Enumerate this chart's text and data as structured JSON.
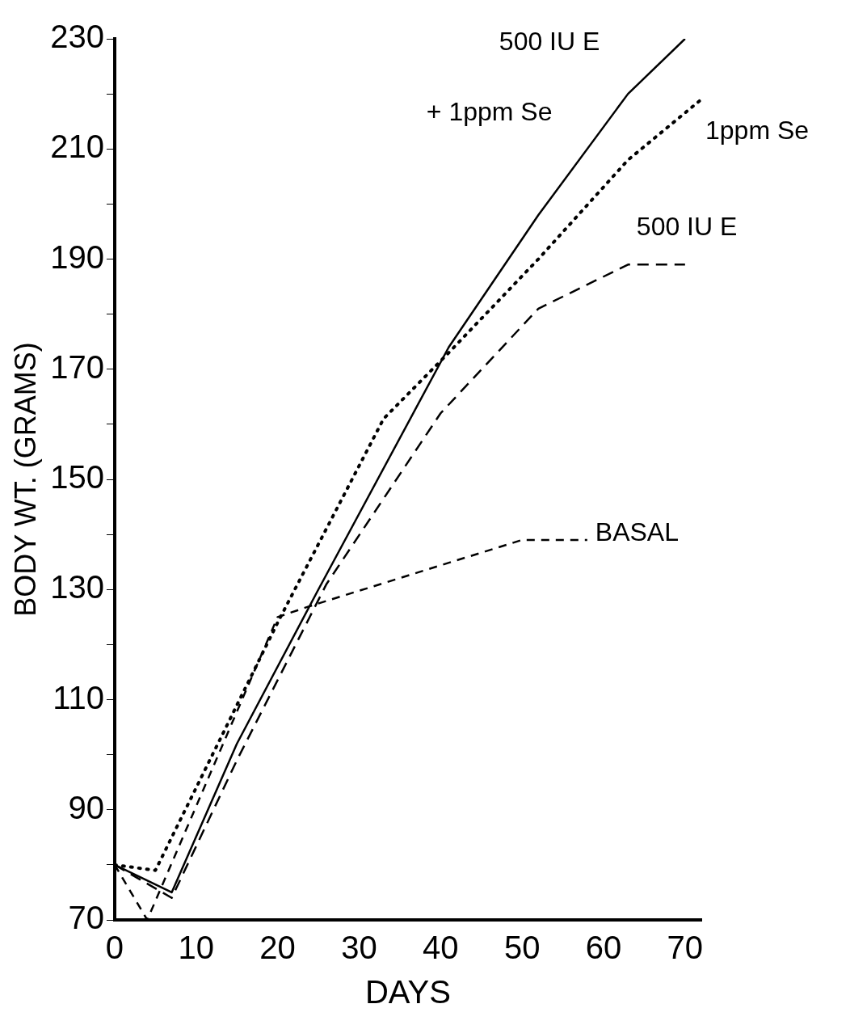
{
  "chart_data": {
    "type": "line",
    "xlabel": "DAYS",
    "ylabel": "BODY WT. (GRAMS)",
    "xlim": [
      0,
      72
    ],
    "xticks": [
      0,
      10,
      20,
      30,
      40,
      50,
      60,
      70
    ],
    "ylim": [
      70,
      230
    ],
    "yticks": [
      70,
      {
        "value": 80,
        "label": null
      },
      90,
      {
        "value": 100,
        "label": null
      },
      110,
      {
        "value": 120,
        "label": null
      },
      130,
      {
        "value": 140,
        "label": null
      },
      150,
      {
        "value": 160,
        "label": null
      },
      170,
      {
        "value": 180,
        "label": null
      },
      190,
      {
        "value": 200,
        "label": null
      },
      210,
      {
        "value": 220,
        "label": null
      },
      230
    ],
    "grid": false,
    "legend": false,
    "marker": "none",
    "series": [
      {
        "name": "500 IU E + 1ppm Se",
        "color": "#000000",
        "line_style": "solid",
        "x": [
          0,
          7,
          15,
          25,
          41,
          52,
          63,
          70
        ],
        "values": [
          80,
          75,
          102,
          130,
          174,
          198,
          220,
          230
        ]
      },
      {
        "name": "1ppm Se",
        "color": "#000000",
        "line_style": "dotted",
        "x": [
          0,
          5,
          20,
          33,
          41,
          52,
          63,
          72
        ],
        "values": [
          80,
          79,
          124,
          161,
          173,
          190,
          208,
          219
        ]
      },
      {
        "name": "500 IU E",
        "color": "#000000",
        "line_style": "dashed",
        "x": [
          0,
          7,
          15,
          26,
          40,
          52,
          63,
          70
        ],
        "values": [
          80,
          74,
          99,
          131,
          162,
          181,
          189,
          189
        ]
      },
      {
        "name": "BASAL",
        "color": "#000000",
        "line_style": "dashed",
        "x": [
          0,
          4,
          20,
          24,
          50,
          58
        ],
        "values": [
          80,
          70,
          125,
          127,
          139,
          139
        ]
      }
    ]
  }
}
